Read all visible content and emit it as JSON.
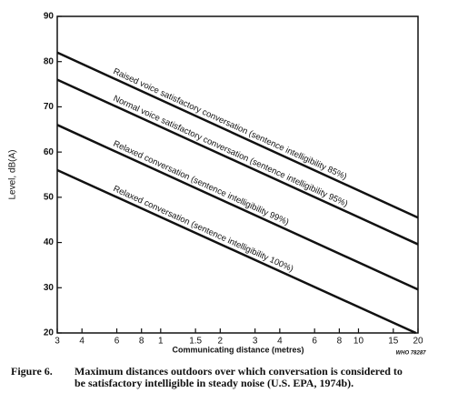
{
  "chart_data": {
    "type": "line",
    "y_label": "Level, dB(A)",
    "x_label": "Communicating distance (metres)",
    "code": "WHO 78287",
    "caption_label": "Figure 6.",
    "caption_lines": [
      "Maximum distances outdoors over which conversation is considered to",
      "be satisfactory intelligible in steady noise (U.S. EPA, 1974b)."
    ],
    "xscale": "log",
    "xlim": [
      0.3,
      20
    ],
    "ylim": [
      20,
      90
    ],
    "xticks": [
      {
        "value": 0.3,
        "label": "3"
      },
      {
        "value": 0.4,
        "label": "4"
      },
      {
        "value": 0.6,
        "label": "6"
      },
      {
        "value": 0.8,
        "label": "8"
      },
      1,
      1.5,
      2,
      3,
      4,
      6,
      8,
      10,
      15,
      20
    ],
    "yticks": [
      20,
      30,
      40,
      50,
      60,
      70,
      80,
      90
    ],
    "series": [
      {
        "name": "Raised voice satisfactory conversation (sentence intelligibility 85%)",
        "color": "#111111",
        "x": [
          0.3,
          20
        ],
        "values": [
          82,
          45.5
        ]
      },
      {
        "name": "Normal voice satisfactory conversation (sentence intelligibility 95%)",
        "color": "#111111",
        "x": [
          0.3,
          20
        ],
        "values": [
          76,
          39.6
        ]
      },
      {
        "name": "Relaxed conversation (sentence intelligibility 99%)",
        "color": "#111111",
        "x": [
          0.3,
          20
        ],
        "values": [
          66,
          29.6
        ]
      },
      {
        "name": "Relaxed conversation (sentence intelligibility 100%)",
        "color": "#111111",
        "x": [
          0.3,
          19.5
        ],
        "values": [
          56,
          20
        ]
      }
    ]
  }
}
